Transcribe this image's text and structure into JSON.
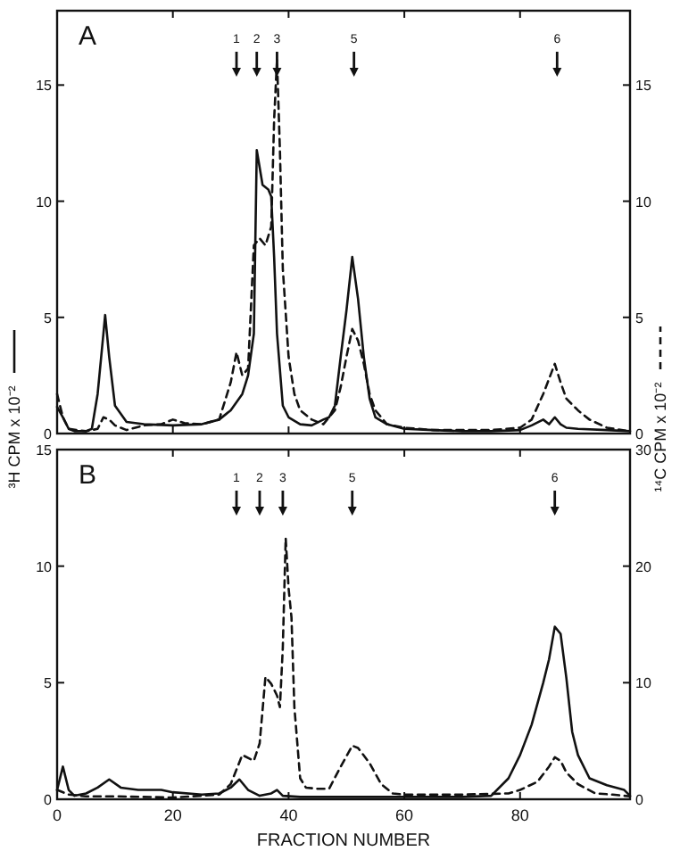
{
  "chart_data": [
    {
      "type": "line",
      "ylabel": "³H CPM x 10⁻²",
      "y2label": "¹⁴C CPM x 10⁻²",
      "annotations": [
        "A",
        {
          "text": "1",
          "x": 31
        },
        {
          "text": "2",
          "x": 34.5
        },
        {
          "text": "3",
          "x": 38
        },
        {
          "text": "5",
          "x": 51.3
        },
        {
          "text": "6",
          "x": 86.4
        }
      ],
      "tick_labels": "y",
      "xlim": [
        0,
        99
      ],
      "xticks": [
        0,
        20,
        40,
        60,
        80
      ],
      "ylim": [
        0,
        18.2
      ],
      "yticks": [
        0,
        5,
        10,
        15
      ],
      "y2lim": [
        0,
        18.2
      ],
      "y2ticks": [
        0,
        5,
        10,
        15
      ],
      "grid": false,
      "legend": false,
      "marker": "none",
      "series": [
        {
          "color": "#111111",
          "line_style": "solid",
          "x": [
            0,
            1,
            2,
            3,
            5,
            6,
            7,
            8,
            8.3,
            9,
            10,
            12,
            15,
            20,
            25,
            28,
            30,
            32,
            33,
            34,
            34.5,
            35.5,
            36.5,
            37,
            37.5,
            38,
            39,
            40,
            42,
            44,
            46,
            47,
            48,
            49,
            50,
            51,
            52,
            53,
            54,
            55,
            57,
            60,
            65,
            70,
            75,
            80,
            82,
            84,
            85,
            86,
            87,
            88,
            90,
            95,
            99
          ],
          "values": [
            1.15,
            0.7,
            0.2,
            0.1,
            0.1,
            0.2,
            1.7,
            4.3,
            5.1,
            3.3,
            1.2,
            0.5,
            0.4,
            0.35,
            0.4,
            0.6,
            1.0,
            1.7,
            2.5,
            4.3,
            12.2,
            10.7,
            10.5,
            10.2,
            7.6,
            4.3,
            1.2,
            0.7,
            0.4,
            0.35,
            0.6,
            0.7,
            1.2,
            3.3,
            5.3,
            7.6,
            5.8,
            3.3,
            1.5,
            0.7,
            0.4,
            0.2,
            0.15,
            0.1,
            0.1,
            0.15,
            0.35,
            0.6,
            0.4,
            0.7,
            0.4,
            0.25,
            0.2,
            0.15,
            0.1
          ]
        },
        {
          "color": "#111111",
          "line_style": "dashed",
          "axis": "y2",
          "x": [
            0,
            1,
            2,
            5,
            7,
            8,
            9,
            10,
            12,
            15,
            18,
            20,
            22,
            25,
            28,
            30,
            31,
            32,
            33,
            34,
            35,
            36,
            37,
            37.5,
            38,
            38.5,
            39,
            40,
            41,
            42,
            44,
            46,
            48,
            49,
            50,
            51,
            52,
            53,
            54,
            55,
            57,
            60,
            65,
            70,
            75,
            80,
            82,
            84,
            86,
            87,
            88,
            90,
            92,
            95,
            99
          ],
          "values": [
            1.7,
            0.7,
            0.2,
            0.1,
            0.2,
            0.7,
            0.6,
            0.35,
            0.15,
            0.35,
            0.4,
            0.6,
            0.45,
            0.4,
            0.6,
            2.2,
            3.5,
            2.5,
            2.8,
            8.1,
            8.4,
            8.1,
            8.9,
            13.5,
            16.1,
            12.2,
            7.1,
            3.3,
            1.7,
            1.0,
            0.6,
            0.4,
            1.0,
            2.0,
            3.3,
            4.5,
            4.0,
            3.0,
            1.7,
            1.0,
            0.4,
            0.25,
            0.15,
            0.15,
            0.15,
            0.25,
            0.6,
            1.7,
            3.0,
            2.2,
            1.5,
            1.0,
            0.6,
            0.25,
            0.1
          ]
        }
      ]
    },
    {
      "type": "line",
      "xlabel": "FRACTION NUMBER",
      "annotations": [
        "B",
        {
          "text": "1",
          "x": 31
        },
        {
          "text": "2",
          "x": 35
        },
        {
          "text": "3",
          "x": 39
        },
        {
          "text": "5",
          "x": 51
        },
        {
          "text": "6",
          "x": 86
        }
      ],
      "xlim": [
        0,
        99
      ],
      "xticks": [
        0,
        20,
        40,
        60,
        80
      ],
      "ylim": [
        0,
        15
      ],
      "yticks": [
        0,
        5,
        10,
        15
      ],
      "y2lim": [
        0,
        30
      ],
      "y2ticks": [
        0,
        10,
        20,
        30
      ],
      "grid": false,
      "legend": false,
      "marker": "none",
      "series": [
        {
          "color": "#111111",
          "line_style": "solid",
          "x": [
            0,
            1,
            2,
            3,
            5,
            7,
            9,
            11,
            14,
            18,
            20,
            25,
            28,
            30,
            31.5,
            33,
            35,
            37,
            38,
            39,
            42,
            50,
            60,
            70,
            75,
            78,
            80,
            82,
            84,
            85,
            86,
            87,
            88,
            89,
            90,
            92,
            95,
            98,
            99
          ],
          "values": [
            0.4,
            1.4,
            0.4,
            0.15,
            0.25,
            0.5,
            0.85,
            0.5,
            0.4,
            0.4,
            0.3,
            0.2,
            0.25,
            0.5,
            0.85,
            0.4,
            0.15,
            0.25,
            0.4,
            0.15,
            0.1,
            0.1,
            0.1,
            0.1,
            0.15,
            0.9,
            1.9,
            3.2,
            5.0,
            6.0,
            7.4,
            7.1,
            5.2,
            2.9,
            1.9,
            0.9,
            0.6,
            0.4,
            0.15
          ]
        },
        {
          "color": "#111111",
          "line_style": "dashed",
          "axis": "y2",
          "x": [
            0,
            2,
            5,
            10,
            20,
            28,
            30,
            32,
            34,
            35,
            36,
            37,
            38,
            38.5,
            39,
            39.5,
            40,
            40.5,
            41,
            42,
            43,
            45,
            47,
            49,
            51,
            52,
            54,
            56,
            58,
            60,
            70,
            78,
            80,
            83,
            85,
            86,
            87,
            88,
            90,
            93,
            96,
            99
          ],
          "values": [
            0.8,
            0.4,
            0.25,
            0.25,
            0.15,
            0.4,
            1.3,
            3.8,
            3.3,
            4.8,
            10.5,
            9.9,
            8.9,
            7.9,
            13.0,
            22.4,
            18.1,
            15.6,
            7.9,
            1.8,
            1.0,
            0.9,
            0.9,
            2.8,
            4.6,
            4.4,
            3.1,
            1.3,
            0.5,
            0.4,
            0.4,
            0.5,
            0.8,
            1.5,
            2.8,
            3.6,
            3.3,
            2.3,
            1.3,
            0.5,
            0.4,
            0.25
          ]
        }
      ]
    }
  ]
}
